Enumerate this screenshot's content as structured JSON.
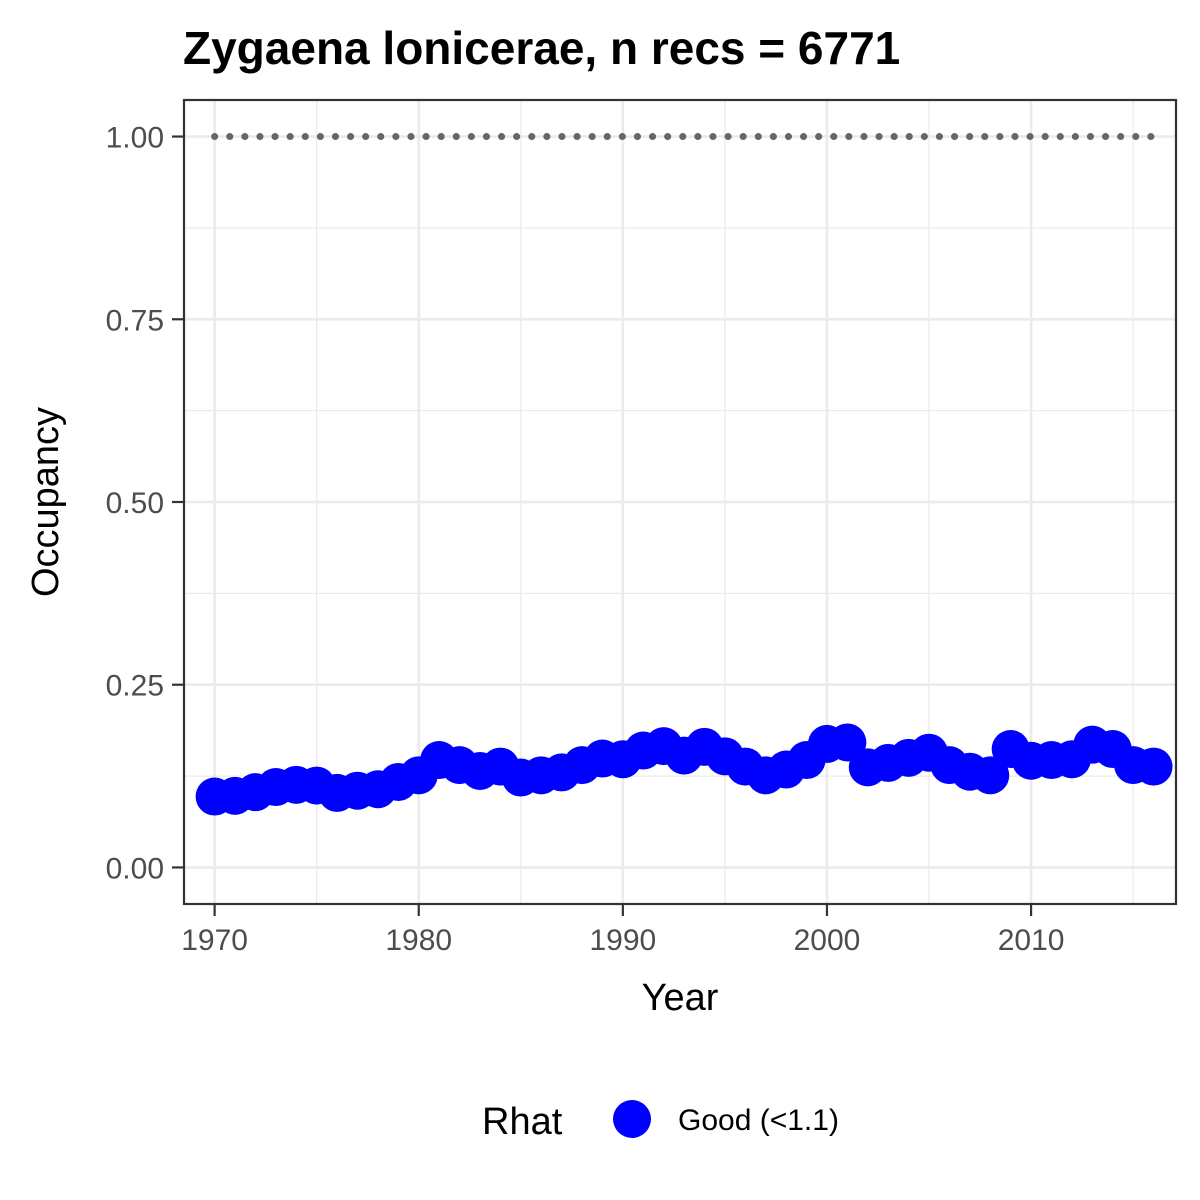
{
  "chart_data": {
    "type": "line",
    "title": "Zygaena lonicerae, n recs = 6771",
    "xlabel": "Year",
    "ylabel": "Occupancy",
    "xlim": [
      1968.5,
      2017.1
    ],
    "ylim": [
      -0.05,
      1.05
    ],
    "x_ticks": [
      1970,
      1980,
      1990,
      2000,
      2010
    ],
    "x_tick_labels": [
      "1970",
      "1980",
      "1990",
      "2000",
      "2010"
    ],
    "y_ticks": [
      0,
      0.25,
      0.5,
      0.75,
      1
    ],
    "y_tick_labels": [
      "0.00",
      "0.25",
      "0.50",
      "0.75",
      "1.00"
    ],
    "grid": true,
    "legend": {
      "title": "Rhat",
      "placement": "bottom",
      "entries": [
        {
          "label": "Good (<1.1)",
          "color": "#0000ff"
        }
      ]
    },
    "series": [
      {
        "name": "Good (<1.1)",
        "color": "#0000ff",
        "style": "points-and-line",
        "x": [
          1970,
          1971,
          1972,
          1973,
          1974,
          1975,
          1976,
          1977,
          1978,
          1979,
          1980,
          1981,
          1982,
          1983,
          1984,
          1985,
          1986,
          1987,
          1988,
          1989,
          1990,
          1991,
          1992,
          1993,
          1994,
          1995,
          1996,
          1997,
          1998,
          1999,
          2000,
          2001,
          2002,
          2003,
          2004,
          2005,
          2006,
          2007,
          2008,
          2009,
          2010,
          2011,
          2012,
          2013,
          2014,
          2015,
          2016
        ],
        "y": [
          0.097,
          0.098,
          0.103,
          0.11,
          0.113,
          0.112,
          0.102,
          0.105,
          0.107,
          0.117,
          0.126,
          0.147,
          0.14,
          0.132,
          0.138,
          0.123,
          0.126,
          0.13,
          0.14,
          0.149,
          0.148,
          0.16,
          0.166,
          0.153,
          0.165,
          0.152,
          0.138,
          0.126,
          0.134,
          0.147,
          0.169,
          0.171,
          0.137,
          0.143,
          0.15,
          0.157,
          0.14,
          0.131,
          0.126,
          0.162,
          0.146,
          0.147,
          0.148,
          0.168,
          0.162,
          0.14,
          0.138
        ]
      },
      {
        "name": "",
        "color": "#666666",
        "style": "dotted",
        "x": [
          1970,
          2016
        ],
        "y": [
          1,
          1
        ]
      }
    ]
  }
}
